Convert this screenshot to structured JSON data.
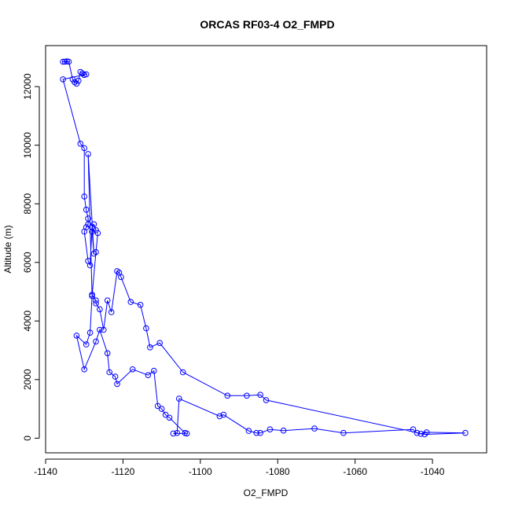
{
  "chart_data": {
    "type": "scatter",
    "title": "ORCAS RF03-4 O2_FMPD",
    "xlabel": "O2_FMPD",
    "ylabel": "Altitude (m)",
    "xlim": [
      -1140,
      -1026
    ],
    "ylim": [
      -500,
      13400
    ],
    "xticks": [
      -1140,
      -1120,
      -1100,
      -1080,
      -1060,
      -1040
    ],
    "yticks": [
      0,
      2000,
      4000,
      6000,
      8000,
      10000,
      12000
    ],
    "grid": false,
    "legend": "none",
    "color": "#0000ff",
    "series": [
      {
        "connected": true,
        "x": [
          -1135.5,
          -1135.0,
          -1134.5,
          -1134.0,
          -1133.0,
          -1132.5,
          -1132.0,
          -1131.5,
          -1131.0,
          -1130.5,
          -1130.0,
          -1129.5,
          -1135.5,
          -1131.0,
          -1130.0,
          -1130.0,
          -1129.5,
          -1129.0,
          -1129.0,
          -1129.5,
          -1130.0,
          -1129.0,
          -1128.5,
          -1128.0,
          -1127.5,
          -1127.0,
          -1128.0,
          -1127.5,
          -1129.0,
          -1128.0,
          -1127.0,
          -1127.0,
          -1126.0,
          -1125.0,
          -1124.0,
          -1123.0,
          -1121.5,
          -1121.0,
          -1120.5,
          -1118.0,
          -1115.5,
          -1114.0,
          -1113.0,
          -1110.5,
          -1104.5,
          -1093.0,
          -1088.0,
          -1084.5,
          -1083.0,
          -1042.0,
          -1031.5,
          -1041.5,
          -1043.0,
          -1044.0,
          -1045.0,
          -1063.0,
          -1070.5,
          -1078.5,
          -1082.0,
          -1084.5,
          -1085.5,
          -1087.5,
          -1094.0,
          -1095.0,
          -1105.5,
          -1106.0,
          -1107.0,
          -1103.5,
          -1104.0,
          -1108.0,
          -1109.0,
          -1110.0,
          -1111.0,
          -1112.0,
          -1113.5,
          -1117.5,
          -1121.5,
          -1122.0,
          -1123.5,
          -1124.0,
          -1126.0,
          -1127.0,
          -1130.0,
          -1132.0,
          -1129.5,
          -1128.5,
          -1128.0,
          -1127.0,
          -1126.5
        ],
        "y": [
          12850,
          12850,
          12860,
          12850,
          12250,
          12150,
          12100,
          12200,
          12500,
          12450,
          12400,
          12420,
          12250,
          10050,
          9900,
          8250,
          7800,
          7500,
          7300,
          7200,
          7050,
          6050,
          5900,
          7200,
          7300,
          7100,
          7050,
          6300,
          9700,
          4900,
          4700,
          4600,
          4400,
          3700,
          4700,
          4300,
          5700,
          5650,
          5500,
          4650,
          4550,
          3750,
          3100,
          3250,
          2250,
          1450,
          1450,
          1480,
          1300,
          130,
          180,
          200,
          150,
          180,
          300,
          180,
          330,
          260,
          300,
          180,
          180,
          250,
          800,
          750,
          1350,
          180,
          160,
          160,
          180,
          700,
          800,
          1000,
          1100,
          2300,
          2150,
          2350,
          1850,
          2100,
          2250,
          2900,
          3700,
          3300,
          2350,
          3500,
          3200,
          3600,
          4850,
          6350,
          7000
        ]
      }
    ]
  }
}
